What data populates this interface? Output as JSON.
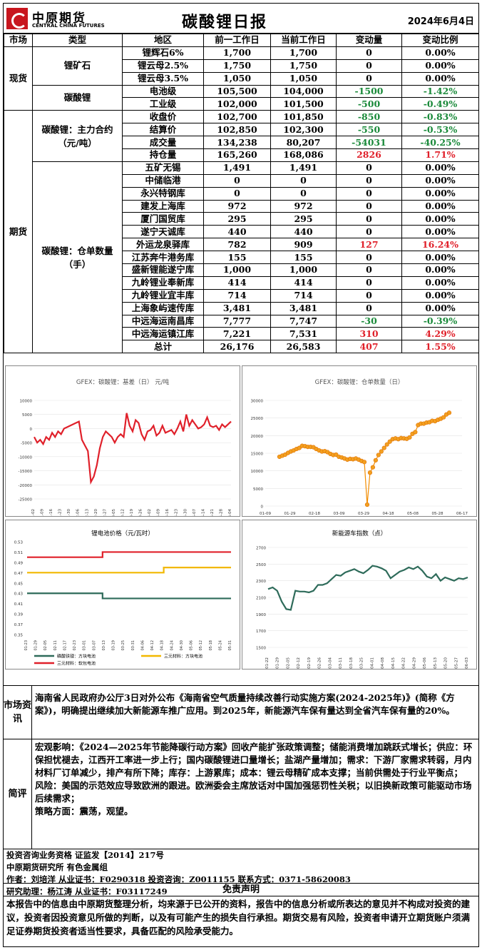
{
  "header": {
    "logo_cn": "中原期货",
    "logo_en": "CENTRAL CHINA FUTURES",
    "title": "碳酸锂日报",
    "date": "2024年6月4日"
  },
  "table": {
    "headers": [
      "市场",
      "类型",
      "地区",
      "前一工作日",
      "当前工作日",
      "变动量",
      "变动比例"
    ],
    "spot_label": "现货",
    "ore_label": "锂矿石",
    "carbonate_label": "碳酸锂",
    "futures_label": "期货",
    "contract_label": "碳酸锂：主力合约（元/吨）",
    "warrant_label": "碳酸锂：仓单数量（手）",
    "spot_rows": [
      [
        "锂辉石6%",
        "1,700",
        "1,700",
        "0",
        "0.00%",
        ""
      ],
      [
        "锂云母2.5%",
        "1,750",
        "1,750",
        "0",
        "0.00%",
        ""
      ],
      [
        "锂云母3.5%",
        "1,050",
        "1,050",
        "0",
        "0.00%",
        ""
      ],
      [
        "电池级",
        "105,500",
        "104,000",
        "-1500",
        "-1.42%",
        "grn"
      ],
      [
        "工业级",
        "102,000",
        "101,500",
        "-500",
        "-0.49%",
        "grn"
      ]
    ],
    "contract_rows": [
      [
        "收盘价",
        "102,700",
        "101,850",
        "-850",
        "-0.83%",
        "grn"
      ],
      [
        "结算价",
        "102,850",
        "102,300",
        "-550",
        "-0.53%",
        "grn"
      ],
      [
        "成交量",
        "134,238",
        "80,207",
        "-54031",
        "-40.25%",
        "grn"
      ],
      [
        "持仓量",
        "165,260",
        "168,086",
        "2826",
        "1.71%",
        "red"
      ]
    ],
    "warrant_rows": [
      [
        "五矿无锡",
        "1,491",
        "1,491",
        "0",
        "0.00%",
        ""
      ],
      [
        "中储临港",
        "0",
        "0",
        "0",
        "0.00%",
        ""
      ],
      [
        "永兴特钢库",
        "0",
        "0",
        "0",
        "0.00%",
        ""
      ],
      [
        "建发上海库",
        "972",
        "972",
        "0",
        "0.00%",
        ""
      ],
      [
        "厦门国贸库",
        "295",
        "295",
        "0",
        "0.00%",
        ""
      ],
      [
        "遂宁天诚库",
        "440",
        "440",
        "0",
        "0.00%",
        ""
      ],
      [
        "外运龙泉驿库",
        "782",
        "909",
        "127",
        "16.24%",
        "red"
      ],
      [
        "江苏奔牛港务库",
        "155",
        "155",
        "0",
        "0.00%",
        ""
      ],
      [
        "盛新锂能遂宁库",
        "1,000",
        "1,000",
        "0",
        "0.00%",
        ""
      ],
      [
        "九岭锂业奉新库",
        "414",
        "414",
        "0",
        "0.00%",
        ""
      ],
      [
        "九岭锂业宜丰库",
        "714",
        "714",
        "0",
        "0.00%",
        ""
      ],
      [
        "上海象屿速传库",
        "3,481",
        "3,481",
        "0",
        "0.00%",
        ""
      ],
      [
        "中远海运南昌库",
        "7,777",
        "7,747",
        "-30",
        "-0.39%",
        "grn"
      ],
      [
        "中远海运镇江库",
        "7,221",
        "7,531",
        "310",
        "4.29%",
        "red"
      ],
      [
        "总计",
        "26,176",
        "26,583",
        "407",
        "1.55%",
        "red"
      ]
    ]
  },
  "charts": {
    "basis": {
      "title": "GFEX：碳酸锂：基差（日） 元/吨",
      "color": "#e0202a",
      "yticks": [
        "10000",
        "5000",
        "0",
        "-5000",
        "-10000",
        "-15000",
        "-20000",
        "-25000"
      ],
      "xticks": [
        "01-02",
        "01-09",
        "01-16",
        "01-23",
        "01-30",
        "02-06",
        "02-13",
        "02-20",
        "02-27",
        "03-05",
        "03-12",
        "03-19",
        "03-26",
        "04-02",
        "04-09",
        "04-16",
        "04-23",
        "04-30",
        "05-07",
        "05-14",
        "05-21",
        "05-28",
        "06-04"
      ],
      "values": [
        -3000,
        -5000,
        -4000,
        -5500,
        -3000,
        -4000,
        -1500,
        -3000,
        -1000,
        -2000,
        0,
        500,
        1000,
        1500,
        2000,
        2500,
        -4000,
        -6000,
        -8000,
        -19000,
        -17000,
        -13000,
        -7000,
        -3000,
        -1000,
        -2000,
        -3000,
        -5000,
        -3000,
        -2000,
        -3000,
        5500,
        1000,
        -1000,
        3000,
        2000,
        -2000,
        -4000,
        -1000,
        -500,
        1000,
        -2500,
        -1500,
        1000,
        -1500,
        -1000,
        -500,
        -2000,
        0,
        2500,
        -1000,
        5000,
        1000,
        3000,
        1500,
        0,
        500,
        1500,
        4000,
        1000,
        500,
        1000,
        -500,
        1500,
        500,
        1500,
        2500
      ]
    },
    "warrant": {
      "title": "GFEX：碳酸锂：仓单数量（日）",
      "color": "#f28c00",
      "fill": "#f3a020",
      "yticks": [
        "30000",
        "25000",
        "20000",
        "15000",
        "10000",
        "5000",
        "0"
      ],
      "xticks": [
        "01-09",
        "01-29",
        "02-18",
        "03-09",
        "03-29",
        "04-18",
        "05-08",
        "05-28",
        "06-17"
      ],
      "values": [
        14000,
        14300,
        14600,
        15100,
        15500,
        15800,
        16200,
        16500,
        17100,
        17000,
        16800,
        16800,
        16700,
        16200,
        15800,
        15500,
        15600,
        15300,
        14800,
        14500,
        14600,
        14000,
        13800,
        13500,
        13200,
        13400,
        13300,
        13500,
        13200,
        12800,
        12500,
        400,
        9500,
        11000,
        13000,
        14500,
        15500,
        16500,
        17500,
        18300,
        19000,
        19200,
        19000,
        19300,
        19200,
        19100,
        19500,
        20500,
        21000,
        23000,
        23400,
        23400,
        23700,
        23800,
        24200,
        24100,
        24500,
        24800,
        25200,
        26000,
        26500
      ]
    },
    "battery": {
      "title": "锂电池价格（元/瓦时）",
      "yticks": [
        "0.53",
        "0.51",
        "0.49",
        "0.47",
        "0.45",
        "0.43",
        "0.41",
        "0.39",
        "0.37",
        "0.35"
      ],
      "xticks": [
        "01-23",
        "01-29",
        "02-05",
        "02-11",
        "02-17",
        "02-23",
        "03-01",
        "03-07",
        "03-13",
        "03-19",
        "03-25",
        "03-31",
        "04-06",
        "04-12",
        "04-18",
        "04-24",
        "04-30",
        "05-06",
        "05-12",
        "05-18",
        "05-24",
        "05-31"
      ],
      "series": [
        {
          "name": "磷酸铁锂：方块电池",
          "color": "#2e6b5a",
          "start": 0.43,
          "end": 0.42
        },
        {
          "name": "三元材料：方块电池",
          "color": "#f2b800",
          "start": 0.47,
          "end": 0.48
        },
        {
          "name": "三元材料：软包电池",
          "color": "#e0202a",
          "start": 0.5,
          "end": 0.51
        }
      ]
    },
    "nev": {
      "title": "新能源车指数（点）",
      "color": "#2e6b5a",
      "yticks": [
        "2700",
        "2500",
        "2300",
        "2100",
        "1900",
        "1700",
        "1500"
      ],
      "xticks": [
        "01-22",
        "01-29",
        "02-05",
        "02-12",
        "02-19",
        "02-26",
        "03-04",
        "03-11",
        "03-18",
        "03-25",
        "04-01",
        "04-08",
        "04-15",
        "04-22",
        "04-29",
        "05-06",
        "05-13",
        "05-20",
        "05-27",
        "06-03"
      ],
      "values": [
        2200,
        2220,
        2180,
        2050,
        1960,
        1950,
        2180,
        2170,
        2170,
        2160,
        2180,
        2250,
        2250,
        2270,
        2320,
        2370,
        2360,
        2400,
        2420,
        2440,
        2410,
        2390,
        2430,
        2480,
        2470,
        2450,
        2420,
        2330,
        2370,
        2410,
        2430,
        2460,
        2440,
        2470,
        2420,
        2350,
        2330,
        2380,
        2300,
        2340,
        2320,
        2300,
        2330,
        2320,
        2340
      ]
    }
  },
  "market_label": "市场资讯",
  "market_text": "海南省人民政府办公厅3日对外公布《海南省空气质量持续改善行动实施方案(2024-2025年)》(简称《方案》)，明确提出继续加大新能源车推广应用。到2025年，新能源汽车保有量达到全省汽车保有量的20%。",
  "review_label": "简评",
  "review_lines": [
    "宏观影响：《2024—2025年节能降碳行动方案》回收产能扩张政策调整；储能消费增加跳跃式增长；供应：环保担忧褪去，江西开工率进一步上行；国内碳酸锂进口量增长；盐湖产量增加；需求：下游厂家需求转弱，月内材料厂订单减少，排产有所下降；库存：上游累库；成本：锂云母精矿成本支撑；当前供需处于行业平衡点；",
    "风险：美国的示范效应导致欧洲的跟进。欧洲委会主席放话对中国加强惩罚性关税；以旧换新政策可能驱动市场后续需求；",
    "策略方面：震荡，观望。"
  ],
  "info": {
    "l1": "投资咨询业务资格 证监发【2014】217号",
    "l2": "中原期货研究所 有色金属组",
    "l3": "作者：刘培洋 从业证书：F0290318 投资咨询：Z0011155 联系方式：0371-58620083",
    "l4": "研究助理：杨江涛 从业证书：F03117249"
  },
  "disclaimer_title": "免责声明",
  "disclaimer": "本报告中的信息由中原期货整理分析，均来源于已公开的资料，报告中的信息分析或所表达的意见并不构成对投资的建议，投资者因投资意见所做的判断，以及有可能产生的损失自行承担。期货交易有风险，投资者申请开立期货账户须满足证券期货投资者适当性要求，具备匹配的风险承受能力。"
}
